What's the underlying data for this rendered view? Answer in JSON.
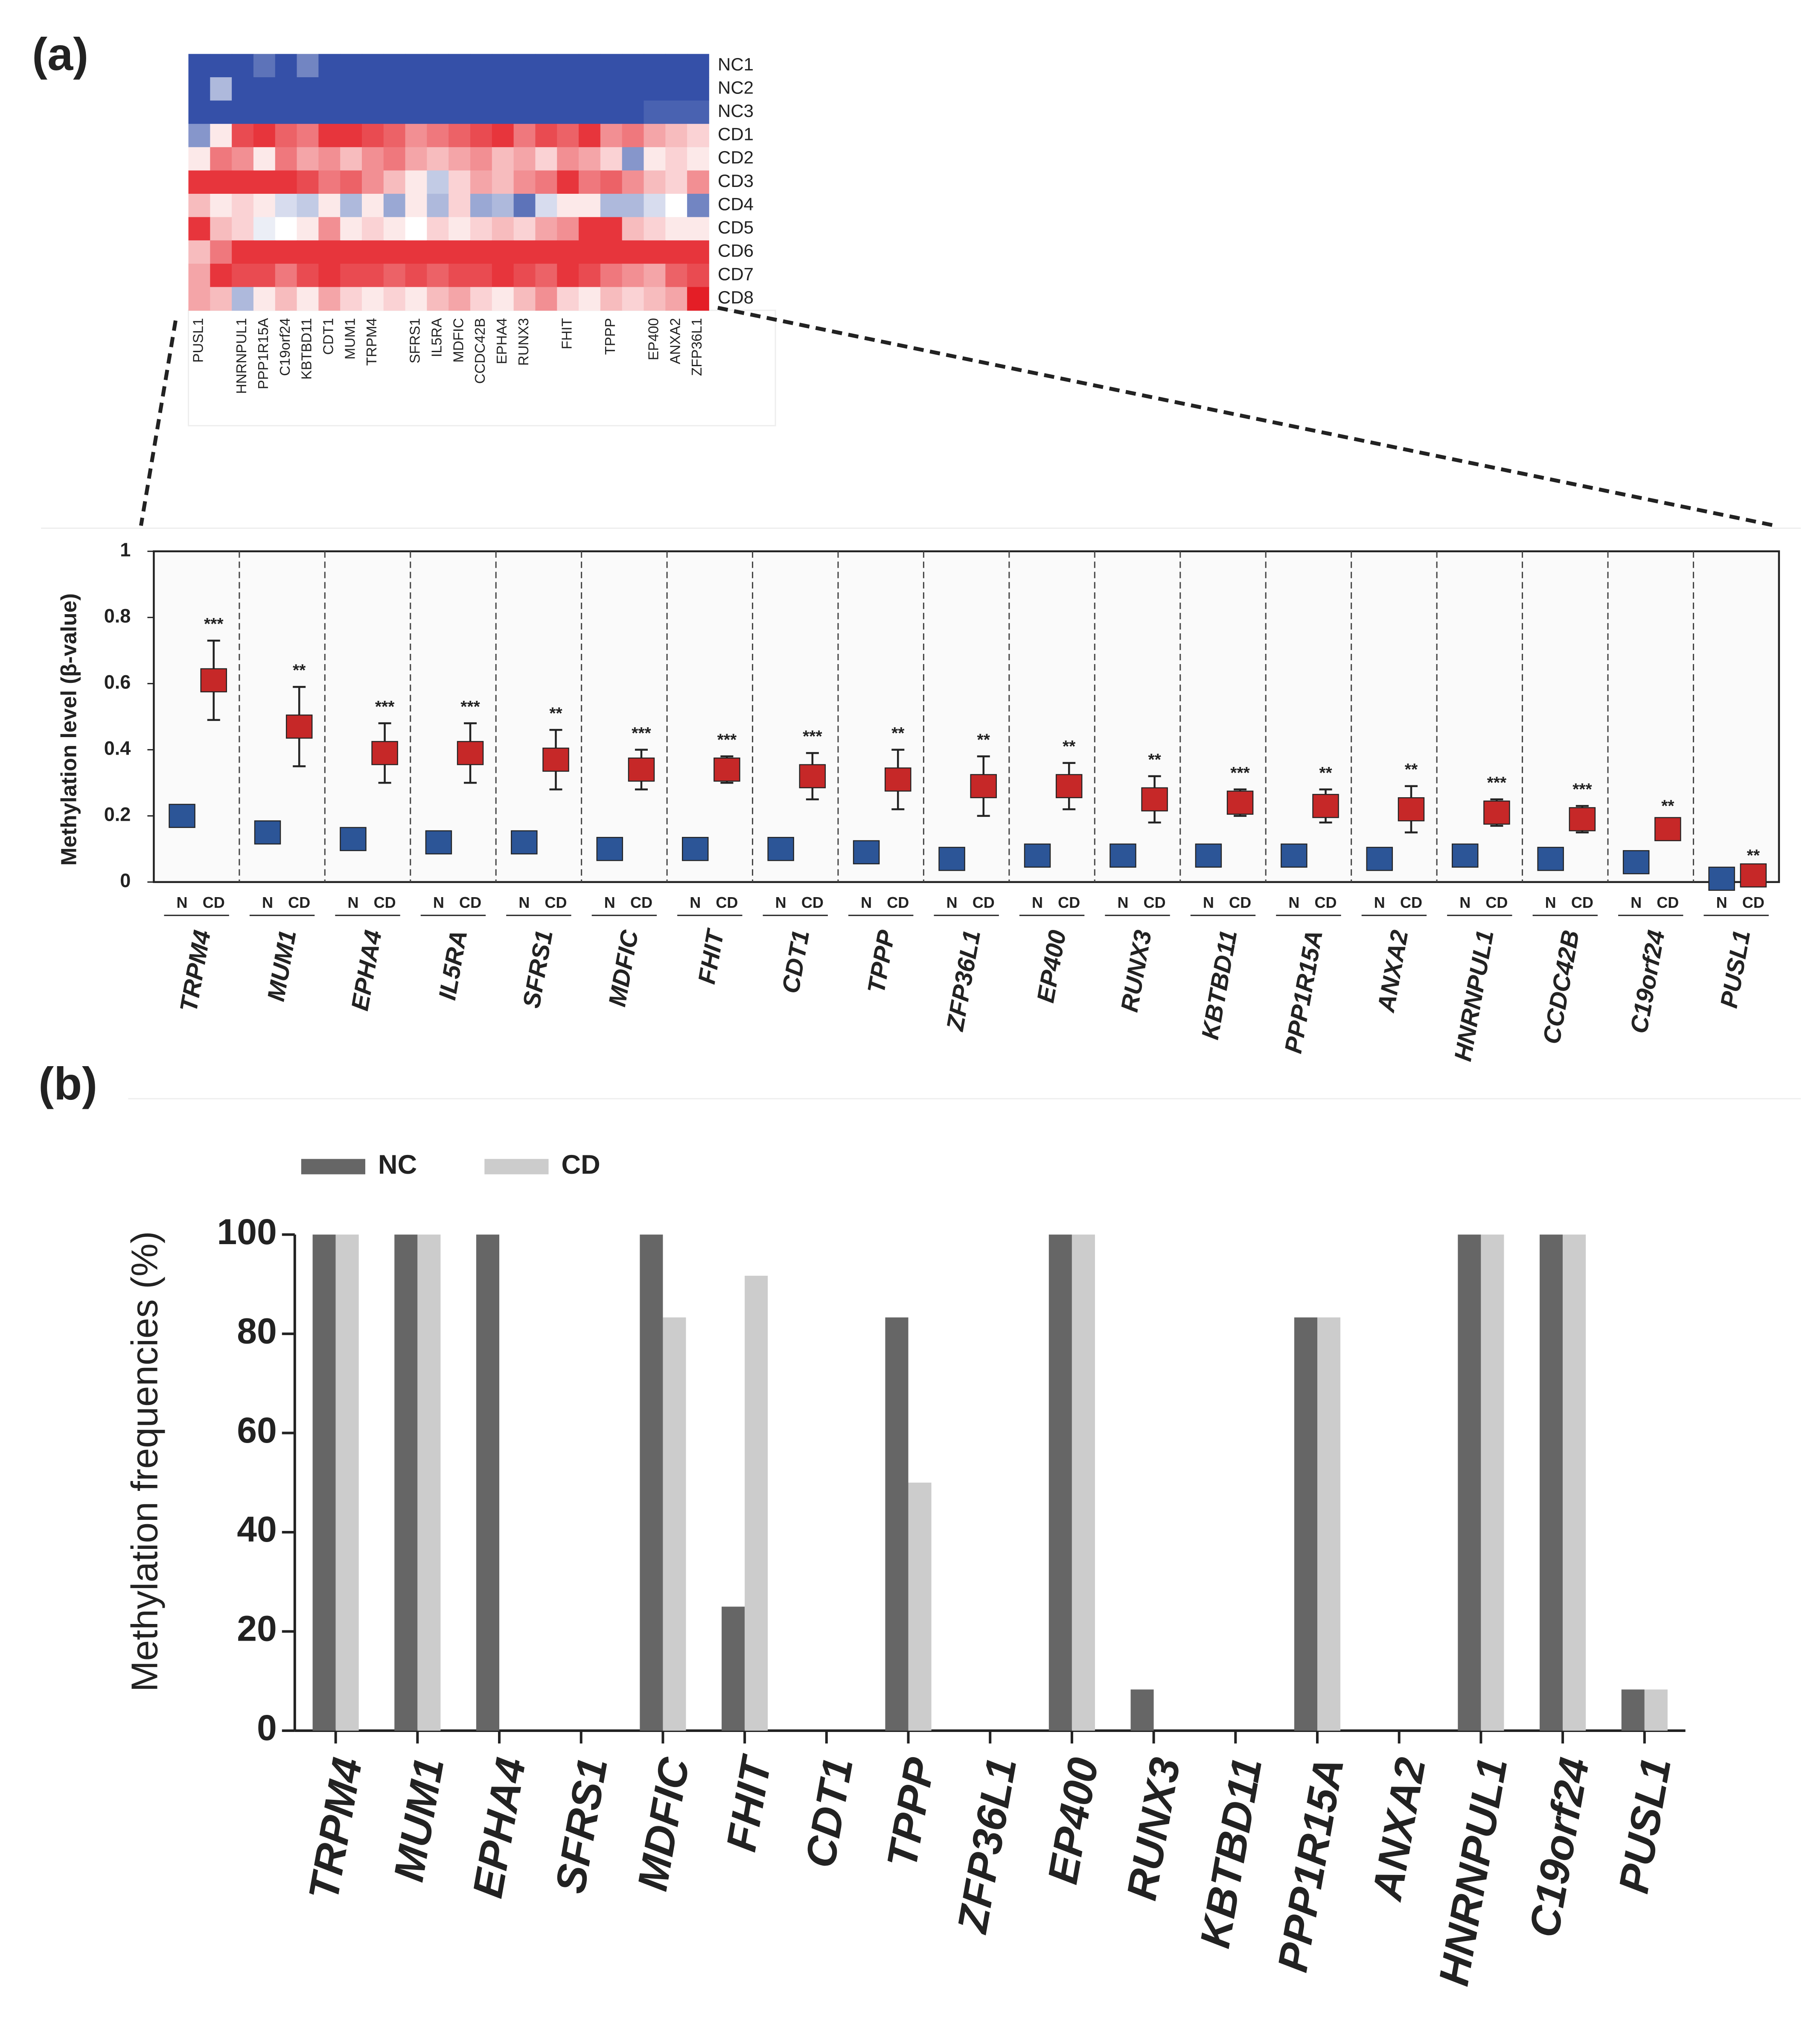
{
  "panel_labels": [
    "(a)",
    "(b)"
  ],
  "chart_data": [
    {
      "type": "heatmap",
      "rows": [
        "NC1",
        "NC2",
        "NC3",
        "CD1",
        "CD2",
        "CD3",
        "CD4",
        "CD5",
        "CD6",
        "CD7",
        "CD8"
      ],
      "columns": [
        "PUSL1",
        null,
        "HNRNPUL1",
        "PPP1R15A",
        "C19orf24",
        "KBTBD11",
        "CDT1",
        "MUM1",
        "TRPM4",
        null,
        "SFRS1",
        "IL5RA",
        "MDFIC",
        "CCDC42B",
        "EPHA4",
        "RUNX3",
        null,
        "FHIT",
        null,
        "TPPP",
        null,
        "EP400",
        "ANXA2",
        "ZFP36L1"
      ],
      "highlight_column": 17,
      "highlight_color": "#e8262a",
      "zlim": [
        -1,
        1
      ],
      "colorscale": [
        "#3550a8",
        "#ffffff",
        "#e41e26"
      ],
      "values": [
        [
          -1,
          -1,
          -1,
          -0.8,
          -1,
          -0.7,
          -1,
          -1,
          -1,
          -1,
          -1,
          -1,
          -1,
          -1,
          -1,
          -1,
          -1,
          -1,
          -1,
          -1,
          -1,
          -1,
          -1,
          -1
        ],
        [
          -1,
          -0.4,
          -1,
          -1,
          -1,
          -1,
          -1,
          -1,
          -1,
          -1,
          -1,
          -1,
          -1,
          -1,
          -1,
          -1,
          -1,
          -1,
          -1,
          -1,
          -1,
          -1,
          -1,
          -1
        ],
        [
          -1,
          -1,
          -1,
          -1,
          -1,
          -1,
          -1,
          -1,
          -1,
          -1,
          -1,
          -1,
          -1,
          -1,
          -1,
          -1,
          -1,
          -1,
          -1,
          -1,
          -1,
          -0.9,
          -0.9,
          -0.9
        ],
        [
          -0.6,
          0.1,
          0.8,
          0.9,
          0.7,
          0.6,
          0.9,
          0.9,
          0.8,
          0.7,
          0.5,
          0.6,
          0.7,
          0.8,
          0.9,
          0.6,
          0.8,
          0.7,
          0.9,
          0.5,
          0.6,
          0.4,
          0.3,
          0.2
        ],
        [
          0.1,
          0.6,
          0.5,
          0.1,
          0.6,
          0.4,
          0.5,
          0.3,
          0.5,
          0.6,
          0.4,
          0.3,
          0.4,
          0.5,
          0.3,
          0.4,
          0.2,
          0.5,
          0.4,
          0.2,
          -0.6,
          0.1,
          0.2,
          0.1
        ],
        [
          0.9,
          0.9,
          0.9,
          0.9,
          0.9,
          0.8,
          0.6,
          0.7,
          0.5,
          0.3,
          0.1,
          -0.3,
          0.2,
          0.4,
          0.3,
          0.5,
          0.6,
          0.9,
          0.6,
          0.7,
          0.5,
          0.3,
          0.2,
          0.5
        ],
        [
          0.3,
          0.1,
          0.2,
          0.1,
          -0.2,
          -0.3,
          0.1,
          -0.4,
          0.1,
          -0.5,
          0.1,
          -0.4,
          0.2,
          -0.5,
          -0.4,
          -0.8,
          -0.2,
          0.1,
          0.1,
          -0.4,
          -0.4,
          -0.2,
          0,
          -0.7
        ],
        [
          0.9,
          0.3,
          0.2,
          -0.1,
          0,
          0.1,
          0.5,
          0.1,
          0.2,
          0.1,
          0,
          0.2,
          0.1,
          0.2,
          0.3,
          0.2,
          0.4,
          0.5,
          0.9,
          0.9,
          0.3,
          0.2,
          0.1,
          0.1
        ],
        [
          0.3,
          0.6,
          0.9,
          0.9,
          0.9,
          0.9,
          0.9,
          0.9,
          0.9,
          0.9,
          0.9,
          0.9,
          0.9,
          0.9,
          0.9,
          0.9,
          0.9,
          0.9,
          0.9,
          0.9,
          0.9,
          0.9,
          0.9,
          0.9
        ],
        [
          0.4,
          0.9,
          0.8,
          0.8,
          0.6,
          0.8,
          0.9,
          0.8,
          0.8,
          0.7,
          0.8,
          0.7,
          0.8,
          0.8,
          0.9,
          0.8,
          0.7,
          0.9,
          0.8,
          0.6,
          0.5,
          0.4,
          0.7,
          0.8
        ],
        [
          0.4,
          0.3,
          -0.4,
          0.1,
          0.3,
          0.1,
          0.4,
          0.2,
          0.1,
          0.2,
          0.1,
          0.3,
          0.4,
          0.2,
          0.1,
          0.3,
          0.5,
          0.2,
          0.1,
          0.3,
          0.2,
          0.3,
          0.4,
          1
        ]
      ]
    },
    {
      "type": "errorbar",
      "y_label": "Methylation level (β-value)",
      "categories": [
        "TRPM4",
        "MUM1",
        "EPHA4",
        "IL5RA",
        "SFRS1",
        "MDFIC",
        "FHIT",
        "CDT1",
        "TPPP",
        "ZFP36L1",
        "EP400",
        "RUNX3",
        "KBTBD11",
        "PPP1R15A",
        "ANXA2",
        "HNRNPUL1",
        "CCDC42B",
        "C19orf24",
        "PUSL1"
      ],
      "series": [
        {
          "name": "N",
          "color": "#2c5597",
          "values": [
            0.2,
            0.15,
            0.13,
            0.12,
            0.12,
            0.1,
            0.1,
            0.1,
            0.09,
            0.07,
            0.08,
            0.08,
            0.08,
            0.08,
            0.07,
            0.08,
            0.07,
            0.06,
            0.01
          ],
          "errors": [
            0.03,
            0,
            0,
            0,
            0,
            0,
            0,
            0,
            0,
            0,
            0,
            0,
            0,
            0,
            0,
            0,
            0,
            0,
            0
          ]
        },
        {
          "name": "CD",
          "color": "#c62828",
          "values": [
            0.61,
            0.47,
            0.39,
            0.39,
            0.37,
            0.34,
            0.34,
            0.32,
            0.31,
            0.29,
            0.29,
            0.25,
            0.24,
            0.23,
            0.22,
            0.21,
            0.19,
            0.16,
            0.02
          ],
          "errors": [
            0.12,
            0.12,
            0.09,
            0.09,
            0.09,
            0.06,
            0.04,
            0.07,
            0.09,
            0.09,
            0.07,
            0.07,
            0.04,
            0.05,
            0.07,
            0.04,
            0.04,
            0.02,
            0.01
          ]
        }
      ],
      "annotations": [
        "***",
        "**",
        "***",
        "***",
        "**",
        "***",
        "***",
        "***",
        "**",
        "**",
        "**",
        "**",
        "***",
        "**",
        "**",
        "***",
        "***",
        "**",
        "**"
      ],
      "ylim": [
        0,
        1
      ],
      "yticks": [
        0,
        0.2,
        0.4,
        0.6,
        0.8,
        1
      ]
    },
    {
      "type": "bar",
      "y_label": "Methylation frequencies (%)",
      "categories": [
        "TRPM4",
        "MUM1",
        "EPHA4",
        "SFRS1",
        "MDFIC",
        "FHIT",
        "CDT1",
        "TPPP",
        "ZFP36L1",
        "EP400",
        "RUNX3",
        "KBTBD11",
        "PPP1R15A",
        "ANXA2",
        "HNRNPUL1",
        "C19orf24",
        "PUSL1"
      ],
      "series": [
        {
          "name": "NC",
          "color": "#666666",
          "values": [
            100,
            100,
            100,
            0,
            100,
            25,
            0,
            83.3,
            0,
            100,
            8.3,
            0,
            83.3,
            0,
            100,
            100,
            8.3
          ]
        },
        {
          "name": "CD",
          "color": "#cccccc",
          "values": [
            100,
            100,
            0,
            0,
            83.3,
            91.7,
            0,
            50,
            0,
            100,
            0,
            0,
            83.3,
            0,
            100,
            100,
            8.3
          ]
        }
      ],
      "ylim": [
        0,
        100
      ],
      "yticks": [
        0,
        20,
        40,
        60,
        80,
        100
      ],
      "legend": "top-left"
    }
  ]
}
